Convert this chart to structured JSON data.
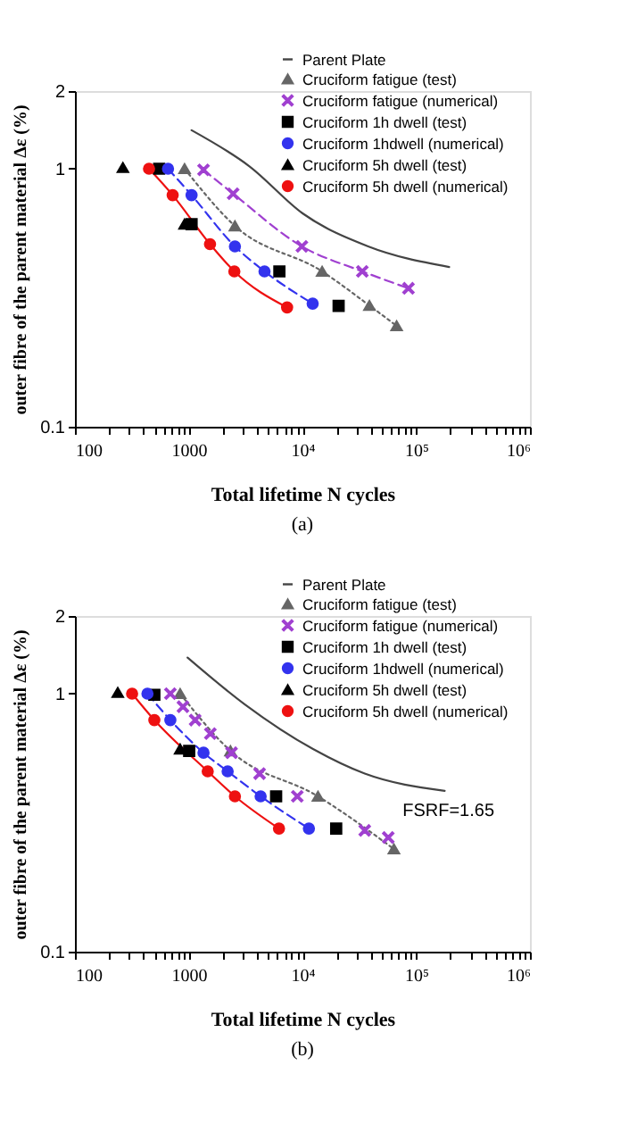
{
  "chart_data": [
    {
      "type": "line",
      "title": "(a)",
      "xlabel": "Total lifetime N cycles",
      "ylabel": "outer fibre of the parent material Δε (%)",
      "log": "xy",
      "grid": false,
      "legend": "top right",
      "xlim": [
        100,
        1000000
      ],
      "ylim": [
        0.1,
        2
      ],
      "xticks": [
        100,
        {
          "value": 200,
          "label": null
        },
        {
          "value": 300,
          "label": null
        },
        {
          "value": 400,
          "label": null
        },
        {
          "value": 500,
          "label": null
        },
        {
          "value": 600,
          "label": null
        },
        {
          "value": 700,
          "label": null
        },
        {
          "value": 800,
          "label": null
        },
        {
          "value": 900,
          "label": null
        },
        1000,
        {
          "value": 2000,
          "label": null
        },
        {
          "value": 3000,
          "label": null
        },
        {
          "value": 4000,
          "label": null
        },
        {
          "value": 5000,
          "label": null
        },
        {
          "value": 6000,
          "label": null
        },
        {
          "value": 7000,
          "label": null
        },
        {
          "value": 8000,
          "label": null
        },
        {
          "value": 9000,
          "label": null
        },
        {
          "value": 10000,
          "label": "10⁴"
        },
        {
          "value": 20000,
          "label": null
        },
        {
          "value": 30000,
          "label": null
        },
        {
          "value": 40000,
          "label": null
        },
        {
          "value": 50000,
          "label": null
        },
        {
          "value": 60000,
          "label": null
        },
        {
          "value": 70000,
          "label": null
        },
        {
          "value": 80000,
          "label": null
        },
        {
          "value": 90000,
          "label": null
        },
        {
          "value": 100000,
          "label": "10⁵"
        },
        {
          "value": 200000,
          "label": null
        },
        {
          "value": 300000,
          "label": null
        },
        {
          "value": 400000,
          "label": null
        },
        {
          "value": 500000,
          "label": null
        },
        {
          "value": 600000,
          "label": null
        },
        {
          "value": 700000,
          "label": null
        },
        {
          "value": 800000,
          "label": null
        },
        {
          "value": 900000,
          "label": null
        },
        {
          "value": 1000000,
          "label": "10⁶"
        }
      ],
      "yticks": [
        0.1,
        1,
        2
      ],
      "series": [
        {
          "name": "Parent Plate",
          "type": "line",
          "color": "#444444",
          "marker": "none",
          "line_style": "solid",
          "x": [
            1060,
            3440,
            10100,
            37800,
            195000
          ],
          "values": [
            1.41,
            1.02,
            0.67,
            0.5,
            0.416
          ]
        },
        {
          "name": "Cruciform fatigue (test)",
          "type": "line",
          "color": "#666666",
          "marker": "triangle",
          "line_style": "dotted",
          "x": [
            920,
            2550,
            14900,
            38800,
            67300
          ],
          "values": [
            1.0,
            0.6,
            0.4,
            0.295,
            0.246
          ]
        },
        {
          "name": "Cruciform fatigue (numerical)",
          "type": "line",
          "color": "#a040d0",
          "marker": "cross",
          "line_style": "dashed",
          "x": [
            1350,
            2460,
            9890,
            33600,
            85500
          ],
          "values": [
            0.99,
            0.8,
            0.5,
            0.4,
            0.344
          ]
        },
        {
          "name": "Cruciform 1h dwell (test)",
          "type": "scatter",
          "color": "#000000",
          "marker": "square",
          "x": [
            550,
            1060,
            6270,
            20800
          ],
          "values": [
            1.0,
            0.61,
            0.4,
            0.294
          ]
        },
        {
          "name": "Cruciform 1hdwell (numerical)",
          "type": "line",
          "color": "#3333ee",
          "marker": "circle",
          "line_style": "dashed",
          "x": [
            658,
            1060,
            2550,
            4640,
            12300
          ],
          "values": [
            1.0,
            0.79,
            0.5,
            0.4,
            0.3
          ]
        },
        {
          "name": "Cruciform 5h dwell (test)",
          "type": "scatter",
          "color": "#000000",
          "marker": "triangle",
          "x": [
            264,
            920
          ],
          "values": [
            1.01,
            0.61
          ]
        },
        {
          "name": "Cruciform 5h dwell (numerical)",
          "type": "line",
          "color": "#ee1111",
          "marker": "circle",
          "line_style": "solid",
          "x": [
            448,
            723,
            1540,
            2520,
            7330
          ],
          "values": [
            1.0,
            0.79,
            0.51,
            0.4,
            0.29
          ]
        }
      ]
    },
    {
      "type": "line",
      "title": "(b)",
      "xlabel": "Total lifetime N cycles",
      "ylabel": "outer fibre of the parent material Δε (%)",
      "log": "xy",
      "grid": false,
      "legend": "top right",
      "xlim": [
        100,
        1000000
      ],
      "ylim": [
        0.1,
        2
      ],
      "xticks": [
        100,
        {
          "value": 200,
          "label": null
        },
        {
          "value": 300,
          "label": null
        },
        {
          "value": 400,
          "label": null
        },
        {
          "value": 500,
          "label": null
        },
        {
          "value": 600,
          "label": null
        },
        {
          "value": 700,
          "label": null
        },
        {
          "value": 800,
          "label": null
        },
        {
          "value": 900,
          "label": null
        },
        1000,
        {
          "value": 2000,
          "label": null
        },
        {
          "value": 3000,
          "label": null
        },
        {
          "value": 4000,
          "label": null
        },
        {
          "value": 5000,
          "label": null
        },
        {
          "value": 6000,
          "label": null
        },
        {
          "value": 7000,
          "label": null
        },
        {
          "value": 8000,
          "label": null
        },
        {
          "value": 9000,
          "label": null
        },
        {
          "value": 10000,
          "label": "10⁴"
        },
        {
          "value": 20000,
          "label": null
        },
        {
          "value": 30000,
          "label": null
        },
        {
          "value": 40000,
          "label": null
        },
        {
          "value": 50000,
          "label": null
        },
        {
          "value": 60000,
          "label": null
        },
        {
          "value": 70000,
          "label": null
        },
        {
          "value": 80000,
          "label": null
        },
        {
          "value": 90000,
          "label": null
        },
        {
          "value": 100000,
          "label": "10⁵"
        },
        {
          "value": 200000,
          "label": null
        },
        {
          "value": 300000,
          "label": null
        },
        {
          "value": 400000,
          "label": null
        },
        {
          "value": 500000,
          "label": null
        },
        {
          "value": 600000,
          "label": null
        },
        {
          "value": 700000,
          "label": null
        },
        {
          "value": 800000,
          "label": null
        },
        {
          "value": 900000,
          "label": null
        },
        {
          "value": 1000000,
          "label": "10⁶"
        }
      ],
      "yticks": [
        0.1,
        1,
        2
      ],
      "annotations": [
        "FSRF=1.65"
      ],
      "series": [
        {
          "name": "Parent Plate",
          "type": "line",
          "color": "#444444",
          "marker": "none",
          "line_style": "solid",
          "x": [
            977,
            3100,
            12400,
            35300,
            178000
          ],
          "values": [
            1.38,
            0.91,
            0.61,
            0.49,
            0.42
          ]
        },
        {
          "name": "Cruciform fatigue (test)",
          "type": "line",
          "color": "#666666",
          "marker": "triangle",
          "line_style": "dotted",
          "x": [
            841,
            2330,
            13700,
            63700
          ],
          "values": [
            1.0,
            0.6,
            0.4,
            0.25
          ]
        },
        {
          "name": "Cruciform fatigue (numerical)",
          "type": "scatter",
          "color": "#a040d0",
          "marker": "cross",
          "x": [
            690,
            891,
            1140,
            1550,
            2380,
            4200,
            9010,
            35300,
            56800
          ],
          "values": [
            1.0,
            0.89,
            0.79,
            0.7,
            0.59,
            0.49,
            0.4,
            0.295,
            0.277
          ]
        },
        {
          "name": "Cruciform 1h dwell (test)",
          "type": "scatter",
          "color": "#000000",
          "marker": "square",
          "x": [
            499,
            1010,
            5870,
            19800
          ],
          "values": [
            0.99,
            0.6,
            0.4,
            0.3
          ]
        },
        {
          "name": "Cruciform 1hdwell (numerical)",
          "type": "line",
          "color": "#3333ee",
          "marker": "circle",
          "line_style": "dashed",
          "x": [
            434,
            690,
            1350,
            2200,
            4290,
            11400
          ],
          "values": [
            1.0,
            0.79,
            0.59,
            0.5,
            0.4,
            0.3
          ]
        },
        {
          "name": "Cruciform 5h dwell (test)",
          "type": "scatter",
          "color": "#000000",
          "marker": "triangle",
          "x": [
            238,
            841
          ],
          "values": [
            1.01,
            0.61
          ]
        },
        {
          "name": "Cruciform 5h dwell (numerical)",
          "type": "line",
          "color": "#ee1111",
          "marker": "circle",
          "line_style": "solid",
          "x": [
            318,
            499,
            1470,
            2550,
            6220
          ],
          "values": [
            1.0,
            0.79,
            0.5,
            0.4,
            0.3
          ]
        }
      ]
    }
  ]
}
